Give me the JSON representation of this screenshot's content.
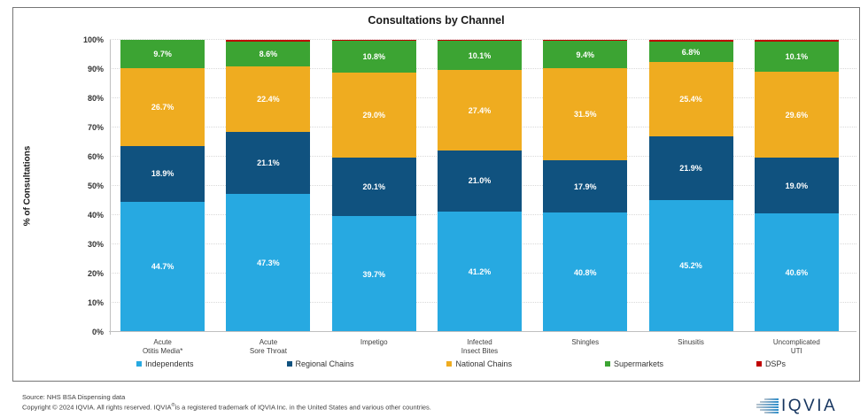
{
  "chart_data": {
    "type": "bar",
    "variant": "stacked-percent",
    "title": "Consultations by Channel",
    "ylabel": "% of Consultations",
    "xlabel": "",
    "ylim": [
      0,
      100
    ],
    "y_ticks": [
      "0%",
      "10%",
      "20%",
      "30%",
      "40%",
      "50%",
      "60%",
      "70%",
      "80%",
      "90%",
      "100%"
    ],
    "grid": "horizontal-dotted",
    "legend_position": "bottom",
    "categories": [
      [
        "Acute",
        "Otitis Media*"
      ],
      [
        "Acute",
        "Sore Throat"
      ],
      [
        "Impetigo"
      ],
      [
        "Infected",
        "Insect Bites"
      ],
      [
        "Shingles"
      ],
      [
        "Sinusitis"
      ],
      [
        "Uncomplicated",
        "UTI"
      ]
    ],
    "series": [
      {
        "name": "Independents",
        "key": "independents",
        "color": "#27A9E1",
        "labels_shown": true,
        "values": [
          44.7,
          47.3,
          39.7,
          41.2,
          40.8,
          45.2,
          40.6
        ]
      },
      {
        "name": "Regional Chains",
        "key": "regional-chains",
        "color": "#10527F",
        "labels_shown": true,
        "values": [
          18.9,
          21.1,
          20.1,
          21.0,
          17.9,
          21.9,
          19.0
        ]
      },
      {
        "name": "National Chains",
        "key": "national-chains",
        "color": "#EFAC20",
        "labels_shown": true,
        "values": [
          26.7,
          22.4,
          29.0,
          27.4,
          31.5,
          25.4,
          29.6
        ]
      },
      {
        "name": "Supermarkets",
        "key": "supermarkets",
        "color": "#3CA433",
        "labels_shown": true,
        "values": [
          9.7,
          8.6,
          10.8,
          10.1,
          9.4,
          6.8,
          10.1
        ]
      },
      {
        "name": "DSPs",
        "key": "dsps",
        "color": "#C00000",
        "labels_shown": false,
        "values": [
          0.0,
          0.6,
          0.4,
          0.3,
          0.4,
          0.7,
          0.7
        ]
      }
    ]
  },
  "colors": {
    "gridline": "#D9D9D9",
    "axis_line": "#BFBFBF",
    "frame_border": "#767676",
    "logo_text": "#16355F"
  },
  "footer": {
    "source_line": "Source: NHS BSA Dispensing data",
    "copyright_pre": "Copyright © 2024 IQVIA. All rights reserved. IQVIA",
    "copyright_reg": "®",
    "copyright_post": "is a registered trademark of IQVIA Inc. in the United States and various other countries."
  },
  "logo": {
    "text": "IQVIA"
  }
}
